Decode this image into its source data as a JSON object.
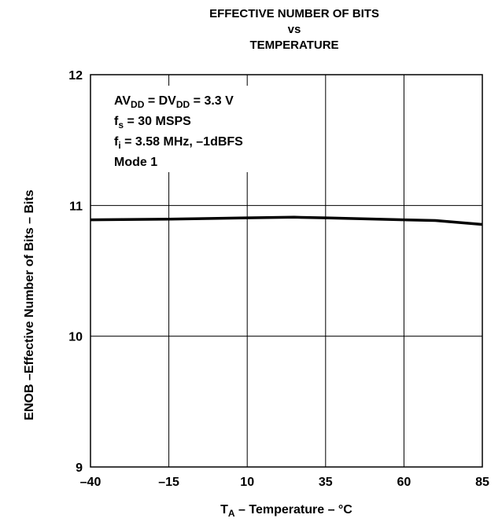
{
  "chart_data": {
    "type": "line",
    "title_lines": [
      "EFFECTIVE NUMBER OF BITS",
      "vs",
      "TEMPERATURE"
    ],
    "xlabel": {
      "main": "T",
      "sub": "A",
      "rest": " – Temperature – °C"
    },
    "ylabel": "ENOB –Effective Number of Bits – Bits",
    "xlim": [
      -40,
      85
    ],
    "ylim": [
      9,
      12
    ],
    "xticks": [
      -40,
      -15,
      10,
      35,
      60,
      85
    ],
    "xtick_labels": [
      "–40",
      "–15",
      "10",
      "35",
      "60",
      "85"
    ],
    "yticks": [
      9,
      10,
      11,
      12
    ],
    "ytick_labels": [
      "9",
      "10",
      "11",
      "12"
    ],
    "grid": true,
    "legend": "none",
    "series": [
      {
        "color": "#000000",
        "x": [
          -40,
          -15,
          10,
          25,
          35,
          60,
          70,
          85
        ],
        "y": [
          10.89,
          10.895,
          10.905,
          10.91,
          10.905,
          10.89,
          10.885,
          10.855
        ]
      }
    ],
    "annotations": [
      {
        "main": "AV",
        "sub": "DD",
        "rest": " = DV",
        "sub2": "DD",
        "rest2": " = 3.3 V"
      },
      {
        "main": "f",
        "sub": "s",
        "rest": " = 30 MSPS"
      },
      {
        "main": "f",
        "sub": "i",
        "rest": "  = 3.58 MHz, –1dBFS"
      },
      {
        "main": "Mode 1"
      }
    ]
  }
}
